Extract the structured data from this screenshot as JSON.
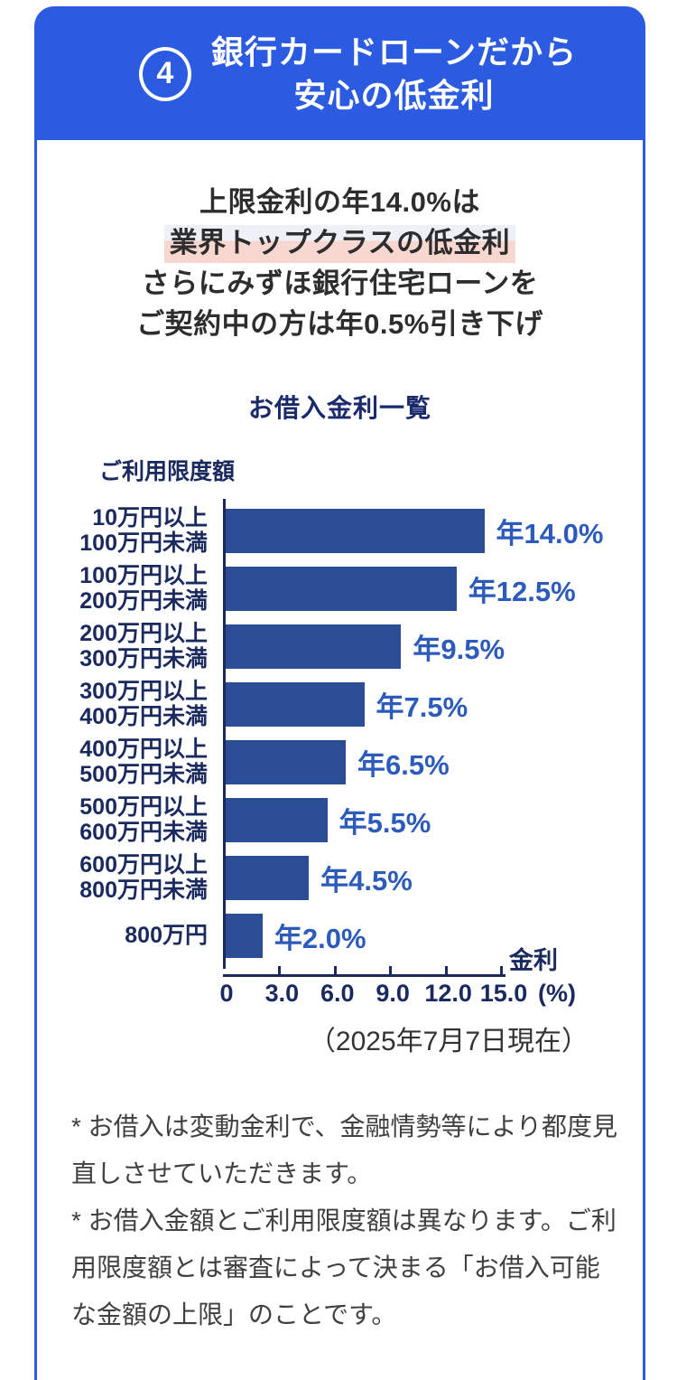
{
  "header": {
    "badge": "4",
    "title_line1": "銀行カードローンだから",
    "title_line2": "安心の低金利"
  },
  "headline": {
    "line1": "上限金利の年14.0%は",
    "line2_highlight": "業界トップクラスの低金利",
    "line3": "さらにみずほ銀行住宅ローンを",
    "line4": "ご契約中の方は年0.5%引き下げ"
  },
  "chart_data": {
    "type": "bar",
    "orientation": "horizontal",
    "title": "お借入金利一覧",
    "y_axis_label": "ご利用限度額",
    "x_axis_title": "金利",
    "x_unit": "(%)",
    "xlim": [
      0,
      15
    ],
    "grid": false,
    "x_ticks": [
      {
        "label": "0",
        "value": 0
      },
      {
        "label": "3.0",
        "value": 3
      },
      {
        "label": "6.0",
        "value": 6
      },
      {
        "label": "9.0",
        "value": 9
      },
      {
        "label": "12.0",
        "value": 12
      },
      {
        "label": "15.0",
        "value": 15
      }
    ],
    "rows": [
      {
        "label_lines": [
          "10万円以上",
          "100万円未満"
        ],
        "value": 14.0,
        "value_label": "年14.0%"
      },
      {
        "label_lines": [
          "100万円以上",
          "200万円未満"
        ],
        "value": 12.5,
        "value_label": "年12.5%"
      },
      {
        "label_lines": [
          "200万円以上",
          "300万円未満"
        ],
        "value": 9.5,
        "value_label": "年9.5%"
      },
      {
        "label_lines": [
          "300万円以上",
          "400万円未満"
        ],
        "value": 7.5,
        "value_label": "年7.5%"
      },
      {
        "label_lines": [
          "400万円以上",
          "500万円未満"
        ],
        "value": 6.5,
        "value_label": "年6.5%"
      },
      {
        "label_lines": [
          "500万円以上",
          "600万円未満"
        ],
        "value": 5.5,
        "value_label": "年5.5%"
      },
      {
        "label_lines": [
          "600万円以上",
          "800万円未満"
        ],
        "value": 4.5,
        "value_label": "年4.5%"
      },
      {
        "label_lines": [
          "800万円"
        ],
        "value": 2.0,
        "value_label": "年2.0%"
      }
    ],
    "as_of": "（2025年7月7日現在）"
  },
  "footnotes": [
    "* お借入は変動金利で、金融情勢等により都度見直しさせていただきます。",
    "* お借入金額とご利用限度額は異なります。ご利用限度額とは審査によって決まる「お借入可能な金額の上限」のことです。"
  ],
  "colors": {
    "header_blue": "#2B5BE0",
    "bar_navy": "#2A4D96",
    "value_label_blue": "#2D5BBB",
    "axis_navy": "#1B2A5E",
    "headline_text": "#2D2D2D",
    "highlight_pink": "#F8D7D0",
    "highlight_top": "#EDF1F7"
  }
}
